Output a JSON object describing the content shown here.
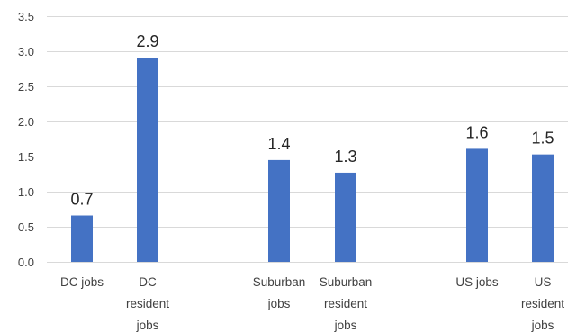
{
  "chart_data": {
    "type": "bar",
    "title": "",
    "xlabel": "",
    "ylabel": "",
    "ylim": [
      0,
      3.5
    ],
    "yticks": [
      "0.0",
      "0.5",
      "1.0",
      "1.5",
      "2.0",
      "2.5",
      "3.0",
      "3.5"
    ],
    "grid": true,
    "legend": "none",
    "bar_color": "#4472c4",
    "grid_color": "#d9d9d9",
    "categories": [
      [
        "DC jobs"
      ],
      [
        "DC",
        "resident",
        "jobs"
      ],
      [
        "Suburban",
        "jobs"
      ],
      [
        "Suburban",
        "resident",
        "jobs"
      ],
      [
        "US jobs"
      ],
      [
        "US",
        "resident",
        "jobs"
      ]
    ],
    "values": [
      0.66,
      2.91,
      1.45,
      1.27,
      1.61,
      1.53
    ],
    "data_labels": [
      "0.7",
      "2.9",
      "1.4",
      "1.3",
      "1.6",
      "1.5"
    ]
  }
}
